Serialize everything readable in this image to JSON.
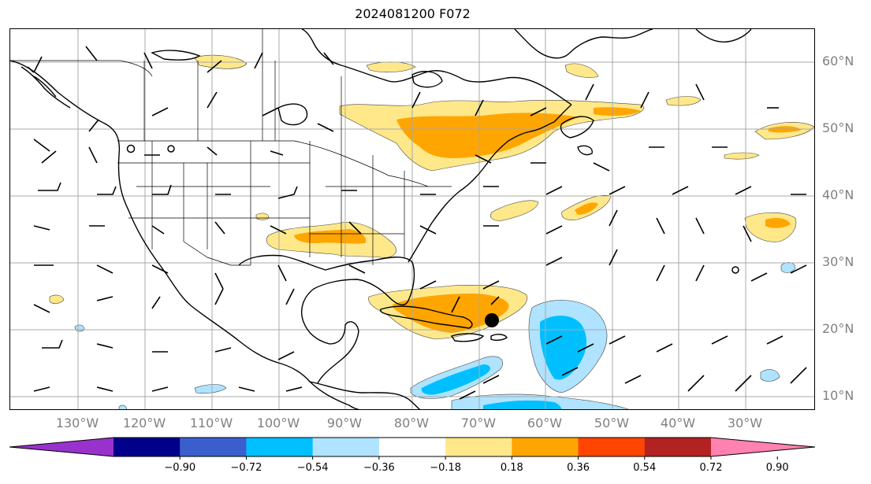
{
  "figure": {
    "title": "2024081200 F072"
  },
  "map": {
    "lat_labels": [
      "60°N",
      "50°N",
      "40°N",
      "30°N",
      "20°N",
      "10°N"
    ],
    "lon_labels": [
      "130°W",
      "120°W",
      "110°W",
      "100°W",
      "90°W",
      "80°W",
      "70°W",
      "60°W",
      "50°W",
      "40°W",
      "30°W"
    ],
    "storm_marker": {
      "lon": -71,
      "lat": 21.5
    },
    "overlays": [
      "coastlines",
      "state-borders",
      "wind-barbs",
      "lat-lon-grid"
    ]
  },
  "colorbar": {
    "ticks": [
      "−0.90",
      "−0.72",
      "−0.54",
      "−0.36",
      "−0.18",
      "0.18",
      "0.36",
      "0.54",
      "0.72",
      "0.90"
    ],
    "colors": [
      "#9932cc",
      "#00008b",
      "#3a5fcd",
      "#00bfff",
      "#afe3ff",
      "#ffffff",
      "#ffe88a",
      "#ffa500",
      "#ff4500",
      "#b22222",
      "#ff82b0"
    ],
    "extend": "both"
  },
  "chart_data": {
    "type": "heatmap",
    "title": "2024081200 F072",
    "x": "longitude",
    "y": "latitude",
    "xlim": [
      -137,
      -16
    ],
    "ylim": [
      8,
      65.5
    ],
    "levels": [
      -0.9,
      -0.72,
      -0.54,
      -0.36,
      -0.18,
      0.18,
      0.36,
      0.54,
      0.72,
      0.9
    ],
    "positive_regions": [
      {
        "center_lon": -68,
        "center_lat": 50,
        "max_level": 0.54
      },
      {
        "center_lon": -92,
        "center_lat": 34,
        "max_level": 0.54
      },
      {
        "center_lon": -74,
        "center_lat": 23,
        "max_level": 0.54
      },
      {
        "center_lon": -24,
        "center_lat": 35,
        "max_level": 0.54
      },
      {
        "center_lon": -52,
        "center_lat": 38,
        "max_level": 0.54
      },
      {
        "center_lon": -20,
        "center_lat": 49,
        "max_level": 0.54
      },
      {
        "center_lon": -63,
        "center_lat": 39,
        "max_level": 0.36
      },
      {
        "center_lon": -115,
        "center_lat": 60,
        "max_level": 0.36
      }
    ],
    "negative_regions": [
      {
        "center_lon": -58,
        "center_lat": 18,
        "min_level": -0.54
      },
      {
        "center_lon": -73,
        "center_lat": 13,
        "min_level": -0.54
      },
      {
        "center_lon": -66,
        "center_lat": 9,
        "min_level": -0.36
      },
      {
        "center_lon": -115,
        "center_lat": 9.5,
        "min_level": -0.36
      }
    ]
  }
}
